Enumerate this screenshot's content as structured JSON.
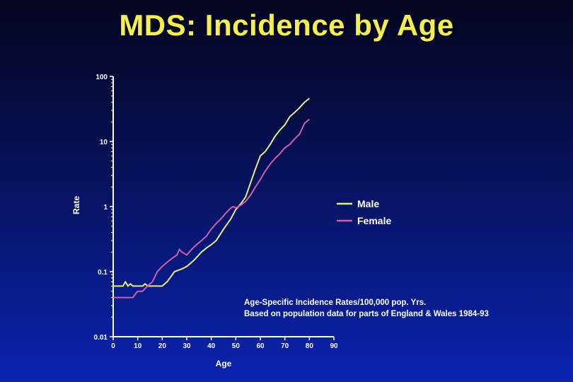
{
  "slide": {
    "title": "MDS: Incidence by Age"
  },
  "chart_data": {
    "type": "line",
    "xlabel": "Age",
    "ylabel": "Rate",
    "xlim": [
      0,
      90
    ],
    "ylim": [
      0.01,
      100
    ],
    "yscale": "log",
    "x_ticks": [
      "0",
      "10",
      "20",
      "30",
      "40",
      "50",
      "60",
      "70",
      "80",
      "90"
    ],
    "y_ticks": [
      "0.01",
      "0.1",
      "1",
      "10",
      "100"
    ],
    "legend_placement": "right",
    "annotation": [
      "Age-Specific Incidence Rates/100,000 pop. Yrs.",
      "Based on population data for parts of England & Wales 1984-93"
    ],
    "series": [
      {
        "name": "Male",
        "color": "#e8ea7a",
        "points": [
          [
            0,
            0.06
          ],
          [
            4,
            0.06
          ],
          [
            5,
            0.07
          ],
          [
            6,
            0.06
          ],
          [
            7,
            0.065
          ],
          [
            8,
            0.06
          ],
          [
            12,
            0.06
          ],
          [
            13,
            0.065
          ],
          [
            14,
            0.06
          ],
          [
            20,
            0.06
          ],
          [
            22,
            0.07
          ],
          [
            25,
            0.1
          ],
          [
            28,
            0.11
          ],
          [
            30,
            0.12
          ],
          [
            33,
            0.15
          ],
          [
            36,
            0.2
          ],
          [
            38,
            0.23
          ],
          [
            40,
            0.26
          ],
          [
            42,
            0.3
          ],
          [
            45,
            0.45
          ],
          [
            48,
            0.65
          ],
          [
            50,
            0.9
          ],
          [
            52,
            1.1
          ],
          [
            54,
            1.4
          ],
          [
            56,
            2.3
          ],
          [
            58,
            3.8
          ],
          [
            60,
            6.0
          ],
          [
            62,
            7.0
          ],
          [
            64,
            9.0
          ],
          [
            66,
            12.0
          ],
          [
            68,
            15.0
          ],
          [
            70,
            18.0
          ],
          [
            72,
            24.0
          ],
          [
            74,
            28.0
          ],
          [
            76,
            33.0
          ],
          [
            78,
            40.0
          ],
          [
            80,
            46.0
          ]
        ]
      },
      {
        "name": "Female",
        "color": "#cf5fa8",
        "points": [
          [
            0,
            0.04
          ],
          [
            8,
            0.04
          ],
          [
            9,
            0.045
          ],
          [
            10,
            0.05
          ],
          [
            12,
            0.05
          ],
          [
            14,
            0.06
          ],
          [
            16,
            0.07
          ],
          [
            18,
            0.1
          ],
          [
            20,
            0.12
          ],
          [
            22,
            0.14
          ],
          [
            24,
            0.16
          ],
          [
            26,
            0.18
          ],
          [
            27,
            0.22
          ],
          [
            28,
            0.2
          ],
          [
            30,
            0.18
          ],
          [
            32,
            0.22
          ],
          [
            34,
            0.26
          ],
          [
            36,
            0.3
          ],
          [
            38,
            0.35
          ],
          [
            40,
            0.45
          ],
          [
            42,
            0.55
          ],
          [
            44,
            0.65
          ],
          [
            46,
            0.8
          ],
          [
            48,
            0.95
          ],
          [
            49,
            1.0
          ],
          [
            50,
            0.95
          ],
          [
            52,
            1.05
          ],
          [
            54,
            1.2
          ],
          [
            56,
            1.5
          ],
          [
            58,
            2.0
          ],
          [
            60,
            2.6
          ],
          [
            62,
            3.5
          ],
          [
            64,
            4.5
          ],
          [
            66,
            5.5
          ],
          [
            68,
            6.5
          ],
          [
            70,
            8.0
          ],
          [
            72,
            9.0
          ],
          [
            74,
            11.0
          ],
          [
            76,
            13.0
          ],
          [
            78,
            19.0
          ],
          [
            80,
            22.0
          ]
        ]
      }
    ]
  }
}
